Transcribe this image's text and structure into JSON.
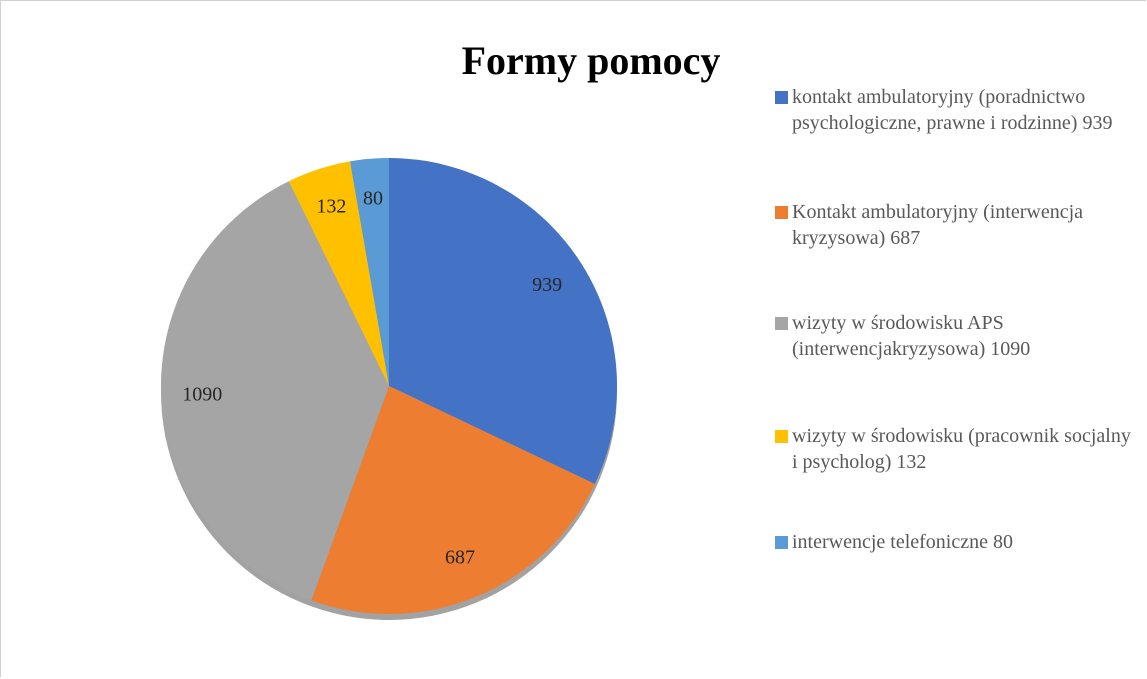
{
  "chart_data": {
    "type": "pie",
    "title": "Formy pomocy",
    "categories": [
      "kontakt ambulatoryjny (poradnictwo psychologiczne, prawne i rodzinne) 939",
      "Kontakt ambulatoryjny (interwencja kryzysowa) 687",
      "wizyty w środowisku APS (interwencjakryzysowa) 1090",
      "wizyty w środowisku (pracownik socjalny i psycholog) 132",
      "interwencje telefoniczne 80"
    ],
    "values": [
      939,
      687,
      1090,
      132,
      80
    ],
    "colors": [
      "#4472c4",
      "#ed7d31",
      "#a5a5a5",
      "#ffc000",
      "#5b9bd5"
    ],
    "legend": "right"
  }
}
